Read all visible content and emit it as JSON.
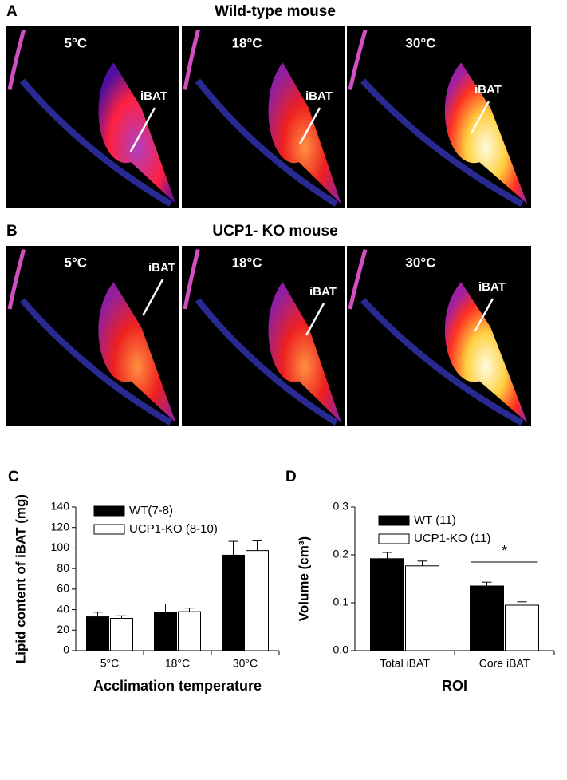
{
  "panels": [
    {
      "label": "A",
      "title": "Wild-type mouse",
      "images": [
        {
          "temp": "5°C",
          "roi": "iBAT"
        },
        {
          "temp": "18°C",
          "roi": "iBAT"
        },
        {
          "temp": "30°C",
          "roi": "iBAT"
        }
      ]
    },
    {
      "label": "B",
      "title": "UCP1- KO mouse",
      "images": [
        {
          "temp": "5°C",
          "roi": "iBAT"
        },
        {
          "temp": "18°C",
          "roi": "iBAT"
        },
        {
          "temp": "30°C",
          "roi": "iBAT"
        }
      ]
    }
  ],
  "chart_data": [
    {
      "panel": "C",
      "type": "bar",
      "ylabel": "Lipid content of iBAT (mg)",
      "xlabel": "Acclimation temperature",
      "categories": [
        "5°C",
        "18°C",
        "30°C"
      ],
      "series": [
        {
          "name": "WT(7-8)",
          "color": "#000000",
          "values": [
            33,
            37,
            93
          ],
          "errors": [
            4.5,
            8.5,
            13.5
          ]
        },
        {
          "name": "UCP1-KO (8-10)",
          "color": "#ffffff",
          "values": [
            31.5,
            38,
            97.5
          ],
          "errors": [
            2.5,
            3.5,
            9.5
          ]
        }
      ],
      "ylim": [
        0,
        140
      ],
      "yticks": [
        0,
        20,
        40,
        60,
        80,
        100,
        120,
        140
      ]
    },
    {
      "panel": "D",
      "type": "bar",
      "ylabel": "Volume (cm³)",
      "xlabel": "ROI",
      "categories": [
        "Total iBAT",
        "Core iBAT"
      ],
      "series": [
        {
          "name": "WT (11)",
          "color": "#000000",
          "values": [
            0.192,
            0.135
          ],
          "errors": [
            0.013,
            0.008
          ]
        },
        {
          "name": "UCP1-KO (11)",
          "color": "#ffffff",
          "values": [
            0.177,
            0.095
          ],
          "errors": [
            0.01,
            0.007
          ]
        }
      ],
      "ylim": [
        0,
        0.3
      ],
      "yticks": [
        {
          "value": 0,
          "label": "0.0"
        },
        0.1,
        0.2,
        0.3
      ],
      "annotation": "*"
    }
  ]
}
